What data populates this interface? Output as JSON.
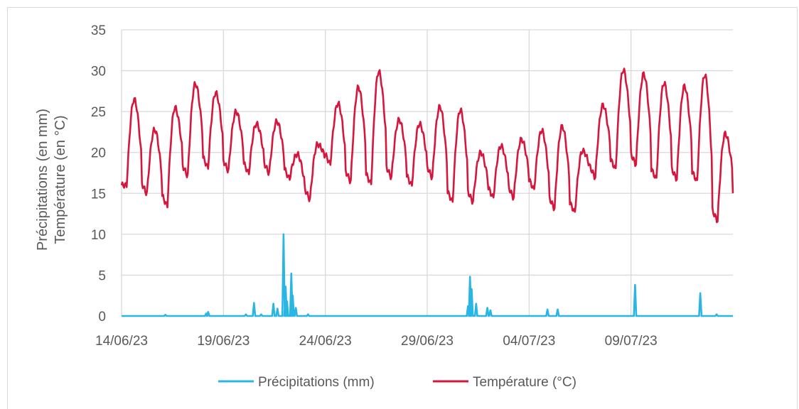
{
  "chart_data": {
    "type": "line",
    "title": "",
    "ylabel_line1": "Précipitations (en mm)",
    "ylabel_line2": "Température (en °C)",
    "xlabel": "",
    "ylim": [
      0,
      35
    ],
    "yticks": [
      "0",
      "5",
      "10",
      "15",
      "20",
      "25",
      "30",
      "35"
    ],
    "xlim_days": [
      0,
      30
    ],
    "xticks": [
      {
        "day": 0,
        "label": "14/06/23"
      },
      {
        "day": 5,
        "label": "19/06/23"
      },
      {
        "day": 10,
        "label": "24/06/23"
      },
      {
        "day": 15,
        "label": "29/06/23"
      },
      {
        "day": 20,
        "label": "04/07/23"
      },
      {
        "day": 25,
        "label": "09/07/23"
      }
    ],
    "grid": true,
    "legend_position": "bottom",
    "series": [
      {
        "name": "Précipitations (mm)",
        "color": "#29b6e4",
        "baseline": 0,
        "peaks": [
          {
            "x": 2.15,
            "y": 0.15
          },
          {
            "x": 4.15,
            "y": 0.3
          },
          {
            "x": 4.25,
            "y": 0.5
          },
          {
            "x": 6.1,
            "y": 0.2
          },
          {
            "x": 6.5,
            "y": 1.6
          },
          {
            "x": 6.85,
            "y": 0.2
          },
          {
            "x": 7.45,
            "y": 1.5
          },
          {
            "x": 7.65,
            "y": 0.9
          },
          {
            "x": 7.95,
            "y": 10
          },
          {
            "x": 8.05,
            "y": 3.6
          },
          {
            "x": 8.12,
            "y": 1.8
          },
          {
            "x": 8.33,
            "y": 5.2
          },
          {
            "x": 8.4,
            "y": 2.5
          },
          {
            "x": 8.55,
            "y": 1.0
          },
          {
            "x": 9.15,
            "y": 0.2
          },
          {
            "x": 17.0,
            "y": 1.2
          },
          {
            "x": 17.1,
            "y": 4.8
          },
          {
            "x": 17.18,
            "y": 3.3
          },
          {
            "x": 17.4,
            "y": 1.5
          },
          {
            "x": 17.95,
            "y": 1.0
          },
          {
            "x": 18.1,
            "y": 0.7
          },
          {
            "x": 20.9,
            "y": 0.8
          },
          {
            "x": 21.4,
            "y": 0.8
          },
          {
            "x": 25.2,
            "y": 3.8
          },
          {
            "x": 28.4,
            "y": 2.8
          },
          {
            "x": 29.2,
            "y": 0.2
          }
        ]
      },
      {
        "name": "Température (°C)",
        "color": "#d6173d",
        "daily": [
          {
            "day": 0,
            "min": 16,
            "max": 26.5
          },
          {
            "day": 1,
            "min": 15,
            "max": 22.8
          },
          {
            "day": 2,
            "min": 13.5,
            "max": 25.5
          },
          {
            "day": 3,
            "min": 17.2,
            "max": 28.4
          },
          {
            "day": 4,
            "min": 18.2,
            "max": 27.3
          },
          {
            "day": 5,
            "min": 17.8,
            "max": 25
          },
          {
            "day": 6,
            "min": 17.5,
            "max": 23.5
          },
          {
            "day": 7,
            "min": 17.5,
            "max": 23.8
          },
          {
            "day": 8,
            "min": 16.8,
            "max": 19.8
          },
          {
            "day": 9,
            "min": 14.3,
            "max": 21
          },
          {
            "day": 10,
            "min": 18.6,
            "max": 26
          },
          {
            "day": 11,
            "min": 16.5,
            "max": 28
          },
          {
            "day": 12,
            "min": 16.2,
            "max": 29.9
          },
          {
            "day": 13,
            "min": 17,
            "max": 24
          },
          {
            "day": 14,
            "min": 16,
            "max": 23.5
          },
          {
            "day": 15,
            "min": 17,
            "max": 25.6
          },
          {
            "day": 16,
            "min": 14,
            "max": 25.2
          },
          {
            "day": 17,
            "min": 14,
            "max": 20
          },
          {
            "day": 18,
            "min": 14.5,
            "max": 20.8
          },
          {
            "day": 19,
            "min": 14.5,
            "max": 21.6
          },
          {
            "day": 20,
            "min": 15.5,
            "max": 22.7
          },
          {
            "day": 21,
            "min": 13.2,
            "max": 23.2
          },
          {
            "day": 22,
            "min": 12.7,
            "max": 20.2
          },
          {
            "day": 23,
            "min": 17,
            "max": 25.8
          },
          {
            "day": 24,
            "min": 18,
            "max": 30.1
          },
          {
            "day": 25,
            "min": 18.6,
            "max": 29.6
          },
          {
            "day": 26,
            "min": 16.8,
            "max": 28.5
          },
          {
            "day": 27,
            "min": 16.8,
            "max": 28.1
          },
          {
            "day": 28,
            "min": 16.5,
            "max": 29.5
          },
          {
            "day": 29,
            "min": 11.7,
            "max": 22.3
          },
          {
            "day": 30,
            "min": 15,
            "max": 15
          }
        ]
      }
    ]
  }
}
